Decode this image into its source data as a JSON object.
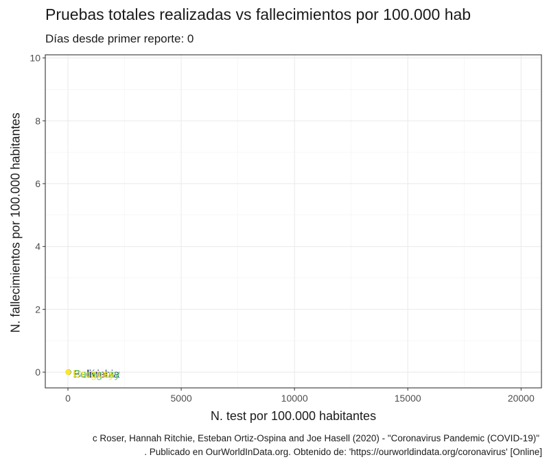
{
  "chart_data": {
    "type": "scatter",
    "title": "Pruebas totales realizadas vs fallecimientos por 100.000 hab",
    "subtitle": "Días desde primer reporte: 0",
    "xlabel": "N. test por 100.000 habitantes",
    "ylabel": "N. fallecimientos por 100.000 habitantes",
    "xlim": [
      -1000,
      20900
    ],
    "ylim": [
      -0.5,
      10.1
    ],
    "xticks": [
      0,
      5000,
      10000,
      15000,
      20000
    ],
    "yticks": [
      0,
      2,
      4,
      6,
      8,
      10
    ],
    "grid": true,
    "points": [
      {
        "label": "Bolivia",
        "x": 20,
        "y": 0,
        "color": "#440154"
      },
      {
        "label": "Colombia",
        "x": 15,
        "y": 0,
        "color": "#3b528b"
      },
      {
        "label": "Perú",
        "x": 10,
        "y": 0,
        "color": "#21908c"
      },
      {
        "label": "Paraguay",
        "x": 8,
        "y": 0,
        "color": "#5ec962"
      },
      {
        "label": "Uruguay",
        "x": 5,
        "y": 0,
        "color": "#fde725"
      }
    ]
  },
  "caption": {
    "line1": "c Roser, Hannah Ritchie, Esteban Ortiz-Ospina and Joe Hasell (2020) - \"Coronavirus Pandemic (COVID-19)\"",
    "line2": ". Publicado en OurWorldInData.org. Obtenido de: 'https://ourworldindata.org/coronavirus' [Online]"
  }
}
